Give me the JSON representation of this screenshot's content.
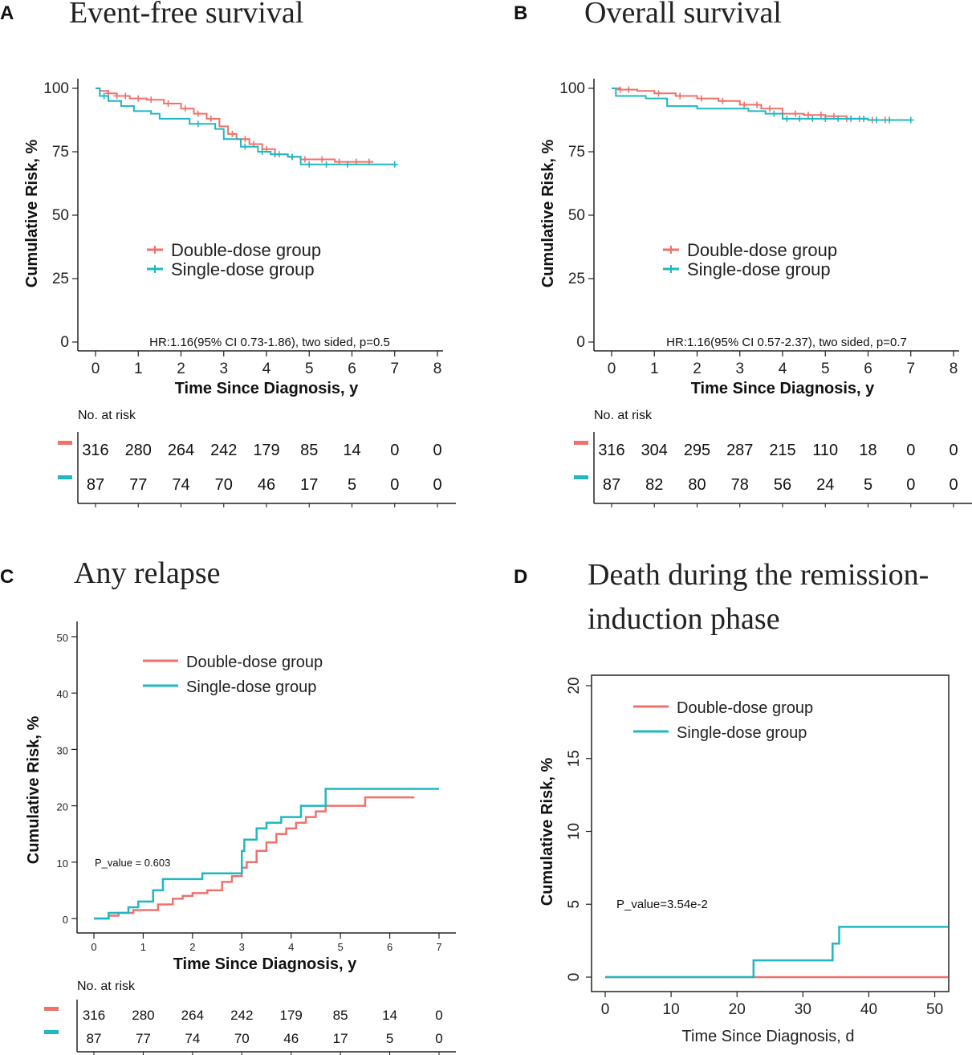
{
  "colors": {
    "double": "#F0716B",
    "single": "#1FB8C2"
  },
  "chart_data": [
    {
      "panel": "A",
      "type": "line",
      "title": "Event-free survival",
      "xlabel": "Time Since Diagnosis, y",
      "ylabel": "Cumulative Risk, %",
      "xlim": [
        0,
        8
      ],
      "ylim": [
        0,
        100
      ],
      "xticks": [
        0,
        1,
        2,
        3,
        4,
        5,
        6,
        7,
        8
      ],
      "yticks": [
        0,
        25,
        50,
        75,
        100
      ],
      "legend": [
        "Double-dose group",
        "Single-dose group"
      ],
      "annotation": "HR:1.16(95% CI 0.73-1.86), two sided, p=0.5",
      "series": [
        {
          "name": "Double-dose group",
          "x": [
            0,
            0.1,
            0.3,
            0.5,
            0.8,
            1.2,
            1.6,
            2.0,
            2.3,
            2.6,
            2.9,
            3.1,
            3.3,
            3.6,
            3.9,
            4.2,
            4.5,
            4.8,
            5.2,
            5.6,
            6.0,
            6.5
          ],
          "y": [
            100,
            99,
            98,
            97,
            96,
            95.5,
            94,
            92,
            90,
            88,
            85,
            82,
            80,
            78,
            76,
            74,
            73,
            72,
            72,
            71,
            71,
            71
          ],
          "censor": [
            0.3,
            0.5,
            0.7,
            1.0,
            1.3,
            1.7,
            2.1,
            2.4,
            2.7,
            3.2,
            3.5,
            3.7,
            4.0,
            4.3,
            4.6,
            4.9,
            5.3,
            5.7,
            6.1,
            6.4
          ]
        },
        {
          "name": "Single-dose group",
          "x": [
            0,
            0.1,
            0.3,
            0.6,
            0.9,
            1.3,
            1.5,
            2.2,
            2.5,
            2.8,
            3.0,
            3.4,
            3.8,
            4.1,
            4.5,
            4.8,
            5.5,
            6.0,
            7.0
          ],
          "y": [
            100,
            97,
            95,
            93,
            91,
            90,
            88,
            86,
            86,
            84,
            80,
            77,
            75,
            74,
            73,
            70,
            70,
            70,
            70
          ],
          "censor": [
            0.2,
            2.4,
            3.5,
            3.9,
            4.2,
            4.6,
            5.0,
            5.4,
            5.9,
            7.0
          ]
        }
      ],
      "risk_table": {
        "label": "No. at risk",
        "double": [
          316,
          280,
          264,
          242,
          179,
          85,
          14,
          0,
          0
        ],
        "single": [
          87,
          77,
          74,
          70,
          46,
          17,
          5,
          0,
          0
        ]
      }
    },
    {
      "panel": "B",
      "type": "line",
      "title": "Overall survival",
      "xlabel": "Time Since Diagnosis, y",
      "ylabel": "Cumulative Risk, %",
      "xlim": [
        0,
        8
      ],
      "ylim": [
        0,
        100
      ],
      "xticks": [
        0,
        1,
        2,
        3,
        4,
        5,
        6,
        7,
        8
      ],
      "yticks": [
        0,
        25,
        50,
        75,
        100
      ],
      "legend": [
        "Double-dose group",
        "Single-dose group"
      ],
      "annotation": "HR:1.16(95% CI 0.57-2.37), two sided, p=0.7",
      "series": [
        {
          "name": "Double-dose group",
          "x": [
            0,
            0.2,
            0.6,
            1.0,
            1.5,
            2.0,
            2.5,
            3.0,
            3.5,
            4.0,
            4.5,
            5.0,
            5.5,
            6.0,
            6.5
          ],
          "y": [
            100,
            99.5,
            99,
            98,
            97,
            96,
            95,
            93.5,
            92,
            90,
            89.5,
            89,
            88,
            87.5,
            87.5
          ],
          "censor": [
            0.2,
            0.4,
            1.1,
            1.6,
            2.1,
            2.6,
            3.1,
            3.4,
            3.7,
            4.0,
            4.3,
            4.6,
            4.9,
            5.2,
            5.5,
            5.8,
            6.1,
            6.4
          ]
        },
        {
          "name": "Single-dose group",
          "x": [
            0,
            0.1,
            0.8,
            1.3,
            2.0,
            3.2,
            3.6,
            4.0,
            5.0,
            6.0,
            7.0
          ],
          "y": [
            100,
            97,
            96,
            93,
            92,
            91,
            90,
            88,
            88,
            87.5,
            87.5
          ],
          "censor": [
            3.8,
            4.1,
            4.4,
            4.7,
            5.0,
            5.3,
            5.6,
            5.9,
            6.2,
            6.5,
            7.0
          ]
        }
      ],
      "risk_table": {
        "label": "No. at risk",
        "double": [
          316,
          304,
          295,
          287,
          215,
          110,
          18,
          0,
          0
        ],
        "single": [
          87,
          82,
          80,
          78,
          56,
          24,
          5,
          0,
          0
        ]
      }
    },
    {
      "panel": "C",
      "type": "line",
      "title": "Any relapse",
      "xlabel": "Time Since Diagnosis, y",
      "ylabel": "Cumulative Risk, %",
      "xlim": [
        0,
        7
      ],
      "ylim": [
        0,
        50
      ],
      "xticks": [
        0,
        1,
        2,
        3,
        4,
        5,
        6,
        7
      ],
      "yticks": [
        0,
        10,
        20,
        30,
        40,
        50
      ],
      "legend": [
        "Double-dose group",
        "Single-dose group"
      ],
      "annotation": "P_value = 0.603",
      "series": [
        {
          "name": "Double-dose group",
          "x": [
            0,
            0.3,
            0.5,
            0.8,
            1.3,
            1.6,
            1.8,
            2.0,
            2.3,
            2.6,
            2.8,
            3.0,
            3.1,
            3.3,
            3.5,
            3.7,
            3.9,
            4.1,
            4.3,
            4.5,
            4.7,
            5.5,
            6.5
          ],
          "y": [
            0,
            0.5,
            1,
            1.5,
            2.5,
            3.5,
            4,
            4.5,
            5,
            6.5,
            7.5,
            9,
            10,
            12,
            13.5,
            15,
            16,
            17,
            18,
            19,
            20,
            21.5,
            21.5
          ]
        },
        {
          "name": "Single-dose group",
          "x": [
            0,
            0.3,
            0.7,
            0.9,
            1.2,
            1.4,
            1.8,
            2.2,
            2.5,
            2.8,
            3.0,
            3.05,
            3.3,
            3.5,
            3.8,
            4.2,
            4.7,
            7.0
          ],
          "y": [
            0,
            1,
            2,
            3,
            5,
            7,
            7,
            8,
            8,
            8,
            12,
            14,
            16,
            17,
            18,
            20,
            23,
            23
          ]
        }
      ],
      "risk_table": {
        "label": "No. at risk",
        "double": [
          316,
          280,
          264,
          242,
          179,
          85,
          14,
          0
        ],
        "single": [
          87,
          77,
          74,
          70,
          46,
          17,
          5,
          0
        ]
      }
    },
    {
      "panel": "D",
      "type": "line",
      "title": [
        "Death during the remission-",
        "induction phase"
      ],
      "xlabel": "Time Since Diagnosis, d",
      "ylabel": "Cumulative Risk, %",
      "xlim": [
        0,
        52
      ],
      "ylim": [
        0,
        20
      ],
      "xticks": [
        0,
        10,
        20,
        30,
        40,
        50
      ],
      "yticks": [
        0,
        5,
        10,
        15,
        20
      ],
      "legend": [
        "Double-dose group",
        "Single-dose group"
      ],
      "annotation": "P_value=3.54e-2",
      "series": [
        {
          "name": "Double-dose group",
          "x": [
            0,
            52
          ],
          "y": [
            0,
            0
          ]
        },
        {
          "name": "Single-dose group",
          "x": [
            0,
            22.5,
            34.5,
            35.5,
            52
          ],
          "y": [
            0,
            1.15,
            2.3,
            3.45,
            3.45
          ]
        }
      ]
    }
  ]
}
